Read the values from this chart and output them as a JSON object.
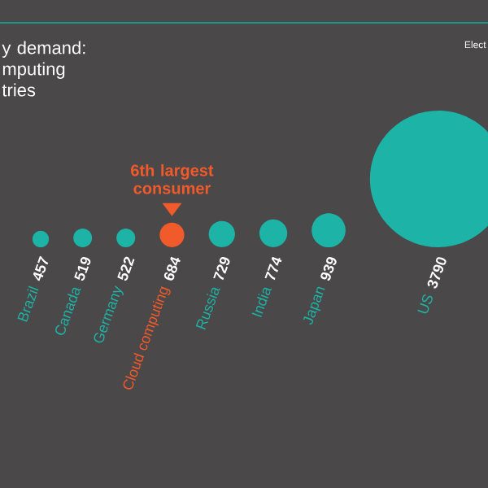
{
  "chart_data": {
    "type": "other",
    "title": "y demand: mputing tries",
    "categories": [
      "Brazil",
      "Canada",
      "Germany",
      "Cloud computing",
      "Russia",
      "India",
      "Japan",
      "US"
    ],
    "values": [
      457,
      519,
      522,
      684,
      729,
      774,
      939,
      3790
    ],
    "data_labels": true,
    "colors": [
      "#1db3a6",
      "#1db3a6",
      "#1db3a6",
      "#f15a2b",
      "#1db3a6",
      "#1db3a6",
      "#1db3a6",
      "#1db3a6"
    ],
    "annotations": [
      {
        "text": "6th largest consumer",
        "x": "Cloud computing"
      },
      "Elect"
    ]
  }
}
